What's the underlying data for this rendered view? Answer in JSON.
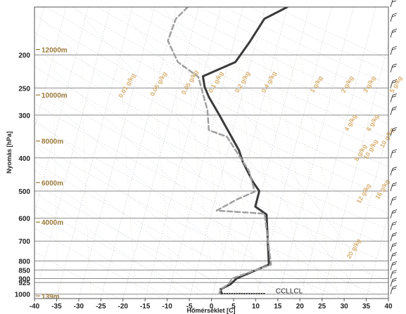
{
  "chart_data": {
    "type": "line",
    "title": "",
    "xlabel": "Hőmérséklet [C]",
    "ylabel": "Nyomás [hPa]",
    "xlim": [
      -40,
      40
    ],
    "ylim": [
      1030,
      145
    ],
    "y_scale": "log",
    "x_ticks": [
      -40,
      -35,
      -30,
      -25,
      -20,
      -15,
      -10,
      -5,
      0,
      5,
      10,
      15,
      20,
      25,
      30,
      35,
      40
    ],
    "y_ticks": [
      200,
      250,
      300,
      400,
      500,
      600,
      700,
      800,
      850,
      900,
      925,
      1000
    ],
    "y_tick_labels": [
      "200",
      "250",
      "300",
      "400",
      "500",
      "600",
      "700",
      "800",
      "850",
      "900",
      "925",
      "1000"
    ],
    "altitude_labels": [
      {
        "label": "12000m",
        "p": 193
      },
      {
        "label": "10000m",
        "p": 262
      },
      {
        "label": "8000m",
        "p": 357
      },
      {
        "label": "6000m",
        "p": 472
      },
      {
        "label": "4000m",
        "p": 616
      },
      {
        "label": "139m",
        "p": 1012
      }
    ],
    "mixing_ratio_labels": [
      {
        "label": "0.01 g/kg",
        "t": -32,
        "p": 268
      },
      {
        "label": "0.05 g/kg",
        "t": -25,
        "p": 265
      },
      {
        "label": "0.05 g/kg",
        "t": -18,
        "p": 262
      },
      {
        "label": "0.1 g/kg",
        "t": -12,
        "p": 259
      },
      {
        "label": "0.2 g/kg",
        "t": -6,
        "p": 259
      },
      {
        "label": "0.4 g/kg",
        "t": 0,
        "p": 259
      },
      {
        "label": "1 g/kg",
        "t": 11,
        "p": 259
      },
      {
        "label": "2 g/kg",
        "t": 18,
        "p": 259
      },
      {
        "label": "3 g/kg",
        "t": 23,
        "p": 259
      },
      {
        "label": "5 g/kg",
        "t": 29,
        "p": 259
      },
      {
        "label": "4 g/kg",
        "t": 21,
        "p": 335
      },
      {
        "label": "6 g/kg",
        "t": 26,
        "p": 335
      },
      {
        "label": "10 g/kg",
        "t": 30,
        "p": 375
      },
      {
        "label": "8 g/kg",
        "t": 25,
        "p": 410
      },
      {
        "label": "10 g/kg",
        "t": 27,
        "p": 405
      },
      {
        "label": "12 g/kg",
        "t": 28,
        "p": 545
      },
      {
        "label": "16 g/kg",
        "t": 32,
        "p": 530
      },
      {
        "label": "20 g/kg",
        "t": 29,
        "p": 790
      }
    ],
    "annotations": [
      {
        "label": "CCLLCL",
        "t": 12,
        "p": 995
      }
    ],
    "series": [
      {
        "role": "temperature",
        "color": "#3a3a3a",
        "style": "solid",
        "points": [
          {
            "t": 0,
            "p": 145
          },
          {
            "t": -4.5,
            "p": 157
          },
          {
            "t": -6.5,
            "p": 184
          },
          {
            "t": -8.5,
            "p": 210
          },
          {
            "t": -15,
            "p": 231
          },
          {
            "t": -14,
            "p": 248
          },
          {
            "t": -12.5,
            "p": 265
          },
          {
            "t": -9,
            "p": 300
          },
          {
            "t": -2.5,
            "p": 380
          },
          {
            "t": -1,
            "p": 410
          },
          {
            "t": 2.5,
            "p": 470
          },
          {
            "t": 4.5,
            "p": 500
          },
          {
            "t": 4.5,
            "p": 555
          },
          {
            "t": 7.5,
            "p": 585
          },
          {
            "t": 11,
            "p": 820
          },
          {
            "t": 4.5,
            "p": 900
          },
          {
            "t": 3.5,
            "p": 935
          },
          {
            "t": 1.5,
            "p": 968
          },
          {
            "t": 2,
            "p": 995
          }
        ]
      },
      {
        "role": "dewpoint",
        "color": "#a0a0a0",
        "style": "dashed",
        "points": [
          {
            "t": -22.5,
            "p": 145
          },
          {
            "t": -24.5,
            "p": 157
          },
          {
            "t": -25,
            "p": 182
          },
          {
            "t": -21.5,
            "p": 210
          },
          {
            "t": -16,
            "p": 232
          },
          {
            "t": -12,
            "p": 290
          },
          {
            "t": -10.5,
            "p": 332
          },
          {
            "t": -6,
            "p": 347
          },
          {
            "t": 1,
            "p": 437
          },
          {
            "t": 3.5,
            "p": 502
          },
          {
            "t": 0,
            "p": 528
          },
          {
            "t": -4,
            "p": 570
          },
          {
            "t": 7,
            "p": 582
          },
          {
            "t": 11.5,
            "p": 820
          },
          {
            "t": 3.5,
            "p": 900
          },
          {
            "t": 3,
            "p": 935
          },
          {
            "t": 1.5,
            "p": 968
          },
          {
            "t": 1.5,
            "p": 995
          }
        ]
      },
      {
        "role": "parcel-to-cclcl",
        "color": "#333333",
        "style": "dotted",
        "points": [
          {
            "t": 2,
            "p": 995
          },
          {
            "t": 12,
            "p": 995
          }
        ]
      }
    ],
    "wind_barbs": [
      145,
      160,
      178,
      200,
      225,
      250,
      275,
      300,
      345,
      400,
      450,
      500,
      550,
      600,
      650,
      700,
      750,
      800,
      850,
      900,
      950,
      1000
    ],
    "grid": true
  }
}
